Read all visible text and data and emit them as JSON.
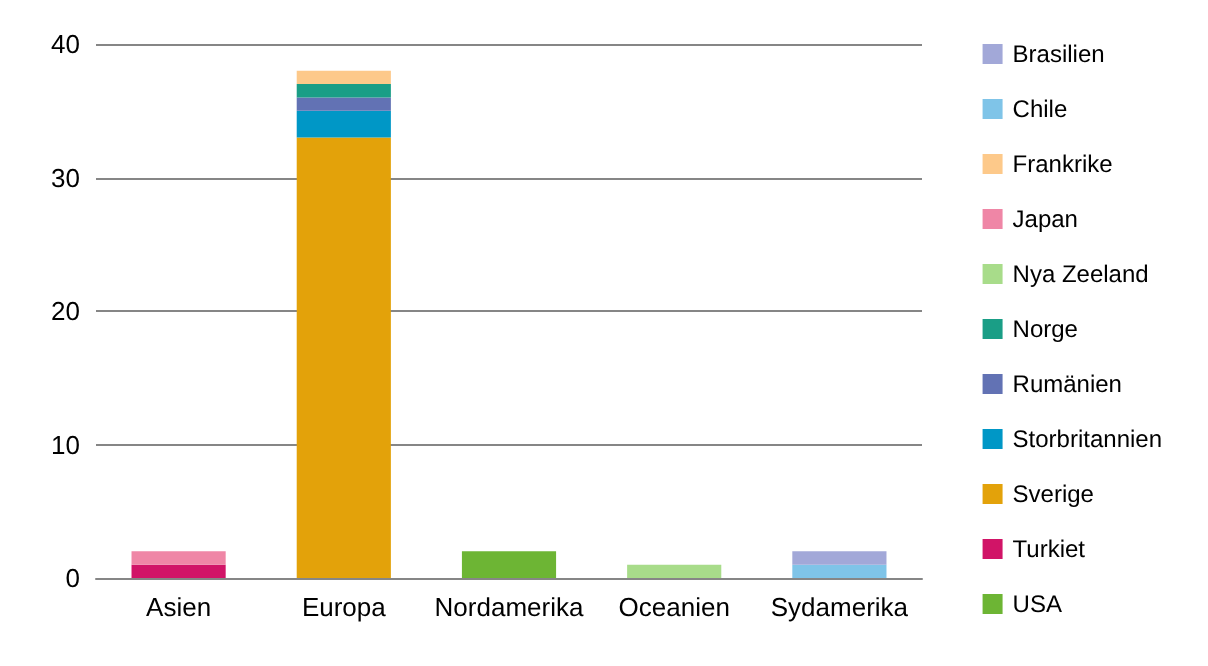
{
  "chart_data": {
    "type": "bar",
    "stacked": true,
    "categories": [
      "Asien",
      "Europa",
      "Nordamerika",
      "Oceanien",
      "Sydamerika"
    ],
    "series": [
      {
        "name": "USA",
        "color": "#6db534",
        "values": [
          0,
          0,
          2,
          0,
          0
        ]
      },
      {
        "name": "Turkiet",
        "color": "#d11467",
        "values": [
          1,
          0,
          0,
          0,
          0
        ]
      },
      {
        "name": "Sverige",
        "color": "#e3a20a",
        "values": [
          0,
          33,
          0,
          0,
          0
        ]
      },
      {
        "name": "Storbritannien",
        "color": "#0097c6",
        "values": [
          0,
          2,
          0,
          0,
          0
        ]
      },
      {
        "name": "Rumänien",
        "color": "#6272b4",
        "values": [
          0,
          1,
          0,
          0,
          0
        ]
      },
      {
        "name": "Norge",
        "color": "#1a9e86",
        "values": [
          0,
          1,
          0,
          0,
          0
        ]
      },
      {
        "name": "Nya Zeeland",
        "color": "#a8dc8a",
        "values": [
          0,
          0,
          0,
          1,
          0
        ]
      },
      {
        "name": "Japan",
        "color": "#ef86a6",
        "values": [
          1,
          0,
          0,
          0,
          0
        ]
      },
      {
        "name": "Frankrike",
        "color": "#fdc98a",
        "values": [
          0,
          1,
          0,
          0,
          0
        ]
      },
      {
        "name": "Chile",
        "color": "#7fc4e8",
        "values": [
          0,
          0,
          0,
          0,
          1
        ]
      },
      {
        "name": "Brasilien",
        "color": "#a2a8d8",
        "values": [
          0,
          0,
          0,
          0,
          1
        ]
      }
    ],
    "ylim": [
      0,
      40
    ],
    "yticks": [
      0,
      10,
      20,
      30,
      40
    ],
    "grid": "y",
    "legend": "right"
  }
}
